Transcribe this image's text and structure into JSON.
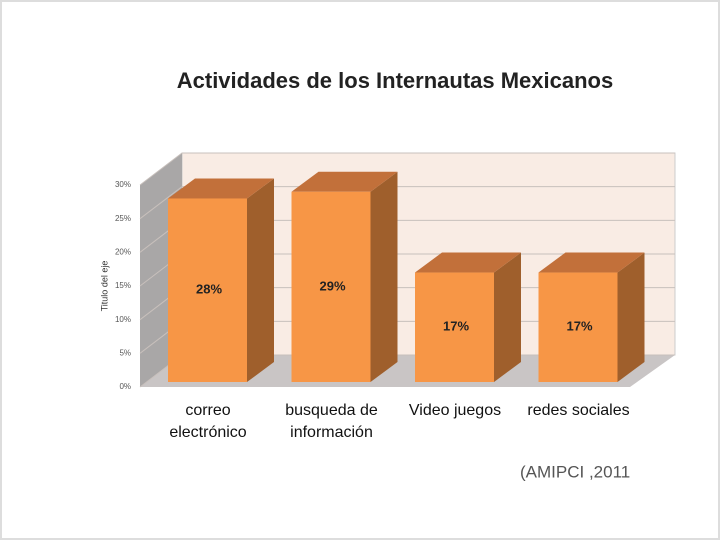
{
  "chart_data": {
    "type": "bar3d",
    "title": "Actividades de los Internautas Mexicanos",
    "categories": [
      "correo electrónico",
      "busqueda de información",
      "Video juegos",
      "redes sociales"
    ],
    "values": [
      28,
      29,
      17,
      17
    ],
    "value_labels": [
      "28%",
      "29%",
      "17%",
      "17%"
    ],
    "color": "#f79646",
    "ylim": [
      0,
      30
    ],
    "yticks": [
      {
        "value": 0,
        "label": "0%"
      },
      {
        "value": 5,
        "label": "5%"
      },
      {
        "value": 10,
        "label": "10%"
      },
      {
        "value": 15,
        "label": "15%"
      },
      {
        "value": 20,
        "label": "20%"
      },
      {
        "value": 25,
        "label": "25%"
      },
      {
        "value": 30,
        "label": "30%"
      }
    ],
    "grid": true,
    "y_label": "Titulo del eje",
    "source": "(AMIPCI ,2011"
  }
}
